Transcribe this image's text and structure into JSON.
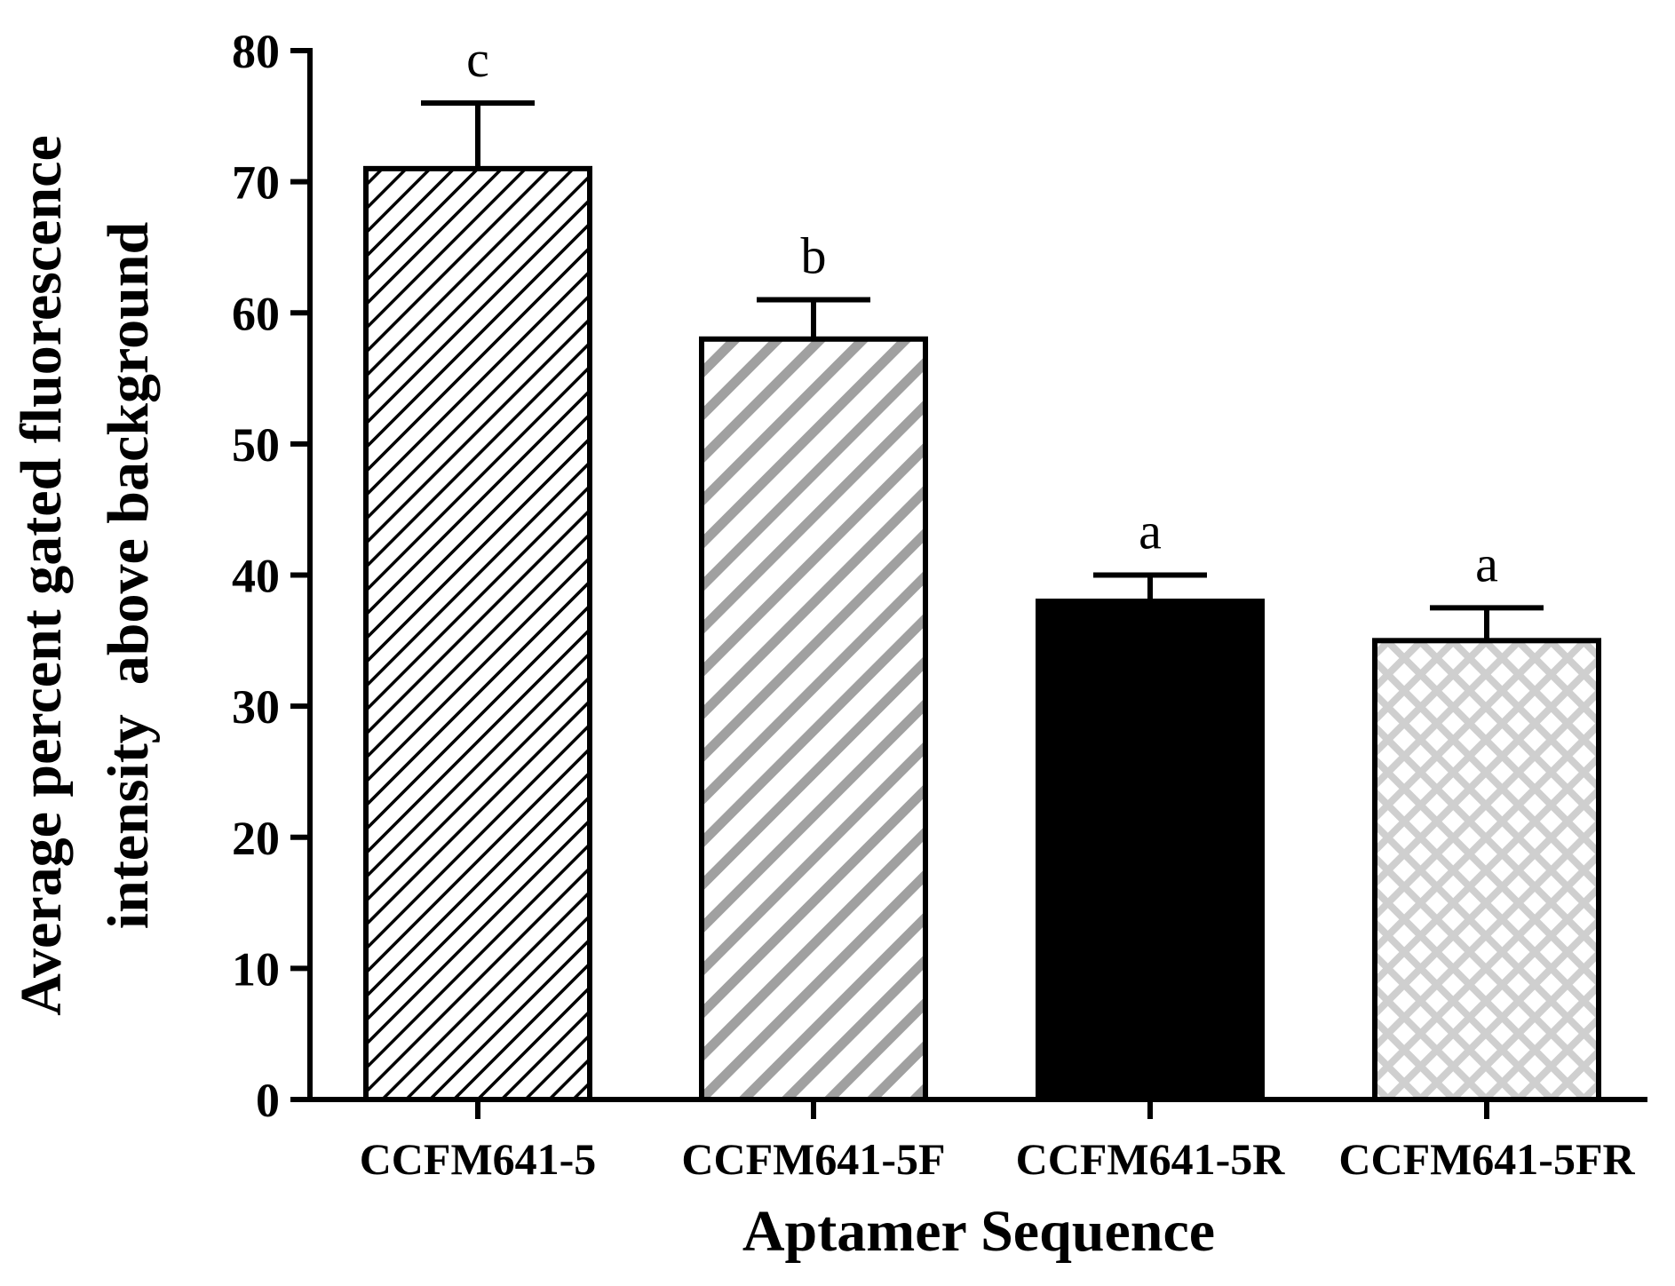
{
  "chart_data": {
    "type": "bar",
    "xlabel": "Aptamer Sequence",
    "ylabel": [
      "Average percent gated fluorescence",
      "intensity  above background"
    ],
    "ylim": [
      0,
      80
    ],
    "yticks": [
      0,
      10,
      20,
      30,
      40,
      50,
      60,
      70,
      80
    ],
    "categories": [
      "CCFM641-5",
      "CCFM641-5F",
      "CCFM641-5R",
      "CCFM641-5FR"
    ],
    "values": [
      71,
      58,
      38,
      35
    ],
    "errors": [
      5,
      3,
      2,
      2.5
    ],
    "significance": [
      "c",
      "b",
      "a",
      "a"
    ],
    "fills": [
      "dense-black-diagonal",
      "gray-diagonal",
      "solid-black",
      "light-gray-crosshatch"
    ],
    "colors": {
      "gray_stripe": "#a0a0a0",
      "light_gray": "#cfcfcf",
      "black": "#000000"
    },
    "grid": false,
    "legend": "none"
  }
}
